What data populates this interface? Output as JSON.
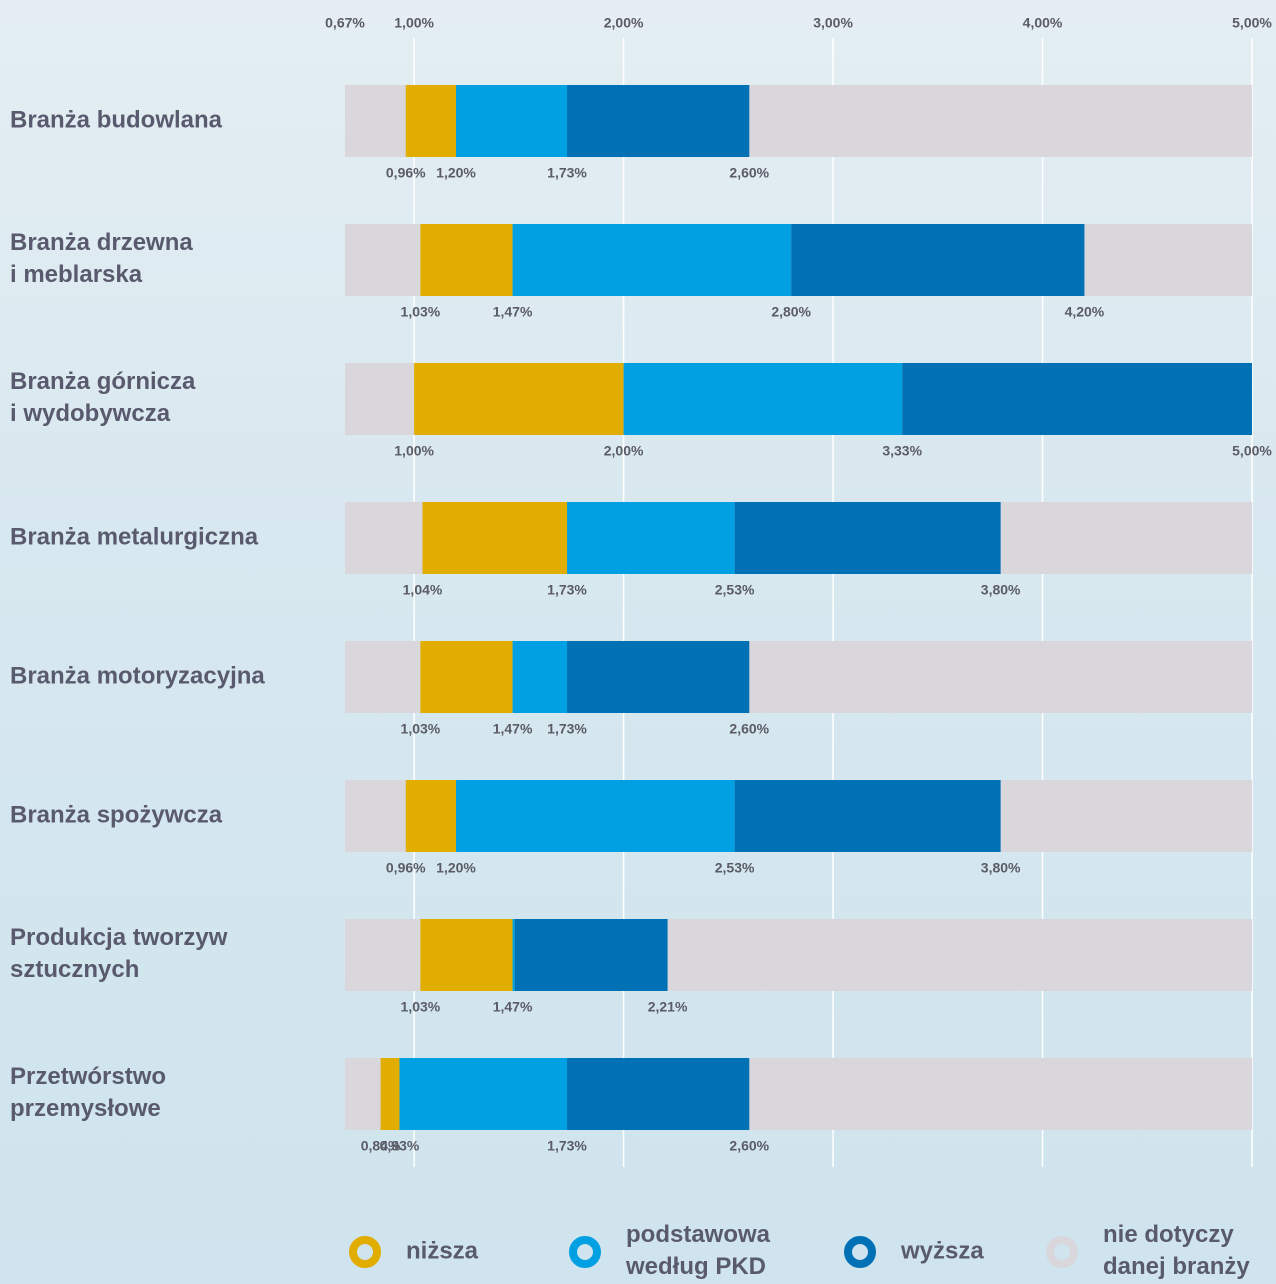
{
  "chart_data": {
    "type": "range-bar",
    "categories": [
      "Branża budowlana",
      "Branża drzewna\ni meblarska",
      "Branża górnicza\ni wydobywcza",
      "Branża metalurgiczna",
      "Branża motoryzacyjna",
      "Branża spożywcza",
      "Produkcja tworzyw\nsztucznych",
      "Przetwórstwo\nprzemysłowe"
    ],
    "thresholds": [
      [
        0.96,
        1.2,
        1.73,
        2.6
      ],
      [
        1.03,
        1.47,
        2.8,
        4.2
      ],
      [
        1.0,
        2.0,
        3.33,
        5.0
      ],
      [
        1.04,
        1.73,
        2.53,
        3.8
      ],
      [
        1.03,
        1.47,
        1.73,
        2.6
      ],
      [
        0.96,
        1.2,
        2.53,
        3.8
      ],
      [
        1.03,
        1.47,
        1.48,
        2.21
      ],
      [
        0.84,
        0.93,
        1.73,
        2.6
      ]
    ],
    "threshold_labels": [
      [
        "0,96%",
        "1,20%",
        "1,73%",
        "2,60%"
      ],
      [
        "1,03%",
        "1,47%",
        "2,80%",
        "4,20%"
      ],
      [
        "1,00%",
        "2,00%",
        "3,33%",
        "5,00%"
      ],
      [
        "1,04%",
        "1,73%",
        "2,53%",
        "3,80%"
      ],
      [
        "1,03%",
        "1,47%",
        "1,73%",
        "2,60%"
      ],
      [
        "0,96%",
        "1,20%",
        "2,53%",
        "3,80%"
      ],
      [
        "1,03%",
        "1,47%",
        null,
        "2,21%"
      ],
      [
        "0,84%",
        "0,93%",
        "1,73%",
        "2,60%"
      ]
    ],
    "series": [
      {
        "name": "niższa",
        "color": "#e0ad00"
      },
      {
        "name": "podstawowa\nwedług PKD",
        "color": "#00a0e3"
      },
      {
        "name": "wyższa",
        "color": "#0071b5"
      },
      {
        "name": "nie dotyczy\ndanej branży",
        "color": "#d9d6dc"
      }
    ],
    "xlim": [
      0.67,
      5.0
    ],
    "xticks": [
      {
        "value": 0.67,
        "label": "0,67%"
      },
      {
        "value": 1.0,
        "label": "1,00%"
      },
      {
        "value": 2.0,
        "label": "2,00%"
      },
      {
        "value": 3.0,
        "label": "3,00%"
      },
      {
        "value": 4.0,
        "label": "4,00%"
      },
      {
        "value": 5.0,
        "label": "5,00%"
      }
    ],
    "grid": true
  }
}
